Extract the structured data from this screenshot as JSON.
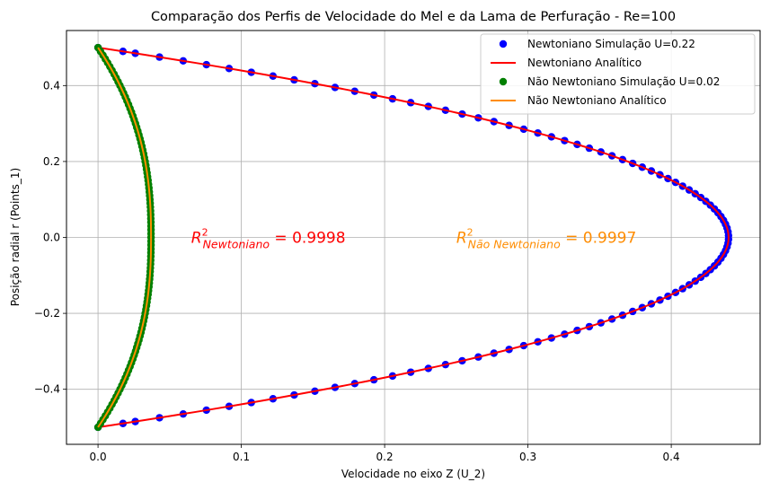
{
  "chart_data": {
    "type": "scatter",
    "title": "Comparação dos Perfis de Velocidade do Mel e da Lama de Perfuração - Re=100",
    "xlabel": "Velocidade no eixo Z (U_2)",
    "ylabel": "Posição radial r (Points_1)",
    "xlim": [
      -0.022,
      0.462
    ],
    "ylim": [
      -0.545,
      0.545
    ],
    "xticks": [
      0.0,
      0.1,
      0.2,
      0.3,
      0.4
    ],
    "xtick_labels": [
      "0.0",
      "0.1",
      "0.2",
      "0.3",
      "0.4"
    ],
    "yticks": [
      -0.4,
      -0.2,
      0.0,
      0.2,
      0.4
    ],
    "ytick_labels": [
      "−0.4",
      "−0.2",
      "0.0",
      "0.2",
      "0.4"
    ],
    "grid": true,
    "legend_position": "upper right",
    "series": [
      {
        "name": "Newtoniano Simulação U=0.22",
        "kind": "scatter",
        "color": "#0000ff",
        "profile": "newtonian",
        "umax": 0.44,
        "y": [
          0.5,
          0.49,
          0.485,
          0.475,
          0.465,
          0.455,
          0.445,
          0.435,
          0.425,
          0.415,
          0.405,
          0.395,
          0.385,
          0.375,
          0.365,
          0.355,
          0.345,
          0.335,
          0.325,
          0.315,
          0.305,
          0.295,
          0.285,
          0.275,
          0.265,
          0.255,
          0.245,
          0.235,
          0.225,
          0.215,
          0.205,
          0.195,
          0.185,
          0.175,
          0.165,
          0.155,
          0.145,
          0.135,
          0.125,
          0.115,
          0.105,
          0.095,
          0.085,
          0.075,
          0.065,
          0.055,
          0.045,
          0.035,
          0.025,
          0.015,
          0.005,
          -0.005,
          -0.015,
          -0.025,
          -0.035,
          -0.045,
          -0.055,
          -0.065,
          -0.075,
          -0.085,
          -0.095,
          -0.105,
          -0.115,
          -0.125,
          -0.135,
          -0.145,
          -0.155,
          -0.165,
          -0.175,
          -0.185,
          -0.195,
          -0.205,
          -0.215,
          -0.225,
          -0.235,
          -0.245,
          -0.255,
          -0.265,
          -0.275,
          -0.285,
          -0.295,
          -0.305,
          -0.315,
          -0.325,
          -0.335,
          -0.345,
          -0.355,
          -0.365,
          -0.375,
          -0.385,
          -0.395,
          -0.405,
          -0.415,
          -0.425,
          -0.435,
          -0.445,
          -0.455,
          -0.465,
          -0.475,
          -0.485,
          -0.49,
          -0.5
        ]
      },
      {
        "name": "Newtoniano Analítico",
        "kind": "line",
        "color": "#ff0000",
        "profile": "newtonian",
        "umax": 0.44
      },
      {
        "name": "Não Newtoniano Simulação U=0.02",
        "kind": "scatter",
        "color": "#008000",
        "profile": "non-newtonian",
        "umax": 0.037,
        "y": [
          0.5,
          0.49,
          0.48,
          0.47,
          0.46,
          0.45,
          0.44,
          0.43,
          0.42,
          0.41,
          0.4,
          0.39,
          0.38,
          0.37,
          0.36,
          0.35,
          0.34,
          0.33,
          0.32,
          0.31,
          0.3,
          0.29,
          0.28,
          0.27,
          0.26,
          0.25,
          0.24,
          0.23,
          0.22,
          0.21,
          0.2,
          0.19,
          0.18,
          0.17,
          0.16,
          0.15,
          0.14,
          0.13,
          0.12,
          0.11,
          0.1,
          0.09,
          0.08,
          0.07,
          0.06,
          0.05,
          0.04,
          0.03,
          0.02,
          0.01,
          0.0,
          -0.01,
          -0.02,
          -0.03,
          -0.04,
          -0.05,
          -0.06,
          -0.07,
          -0.08,
          -0.09,
          -0.1,
          -0.11,
          -0.12,
          -0.13,
          -0.14,
          -0.15,
          -0.16,
          -0.17,
          -0.18,
          -0.19,
          -0.2,
          -0.21,
          -0.22,
          -0.23,
          -0.24,
          -0.25,
          -0.26,
          -0.27,
          -0.28,
          -0.29,
          -0.3,
          -0.31,
          -0.32,
          -0.33,
          -0.34,
          -0.35,
          -0.36,
          -0.37,
          -0.38,
          -0.39,
          -0.4,
          -0.41,
          -0.42,
          -0.43,
          -0.44,
          -0.45,
          -0.46,
          -0.47,
          -0.48,
          -0.49,
          -0.5
        ]
      },
      {
        "name": "Não Newtoniano Analítico",
        "kind": "line",
        "color": "#ff8c00",
        "profile": "non-newtonian",
        "umax": 0.037
      }
    ],
    "annotations": [
      {
        "sub": "Newtoniano",
        "rest": " = 0.9998",
        "color": "#ff0000",
        "x": 0.065,
        "y": 0.0
      },
      {
        "sub": "Não Newtoniano",
        "rest": " = 0.9997",
        "color": "#ff8c00",
        "x": 0.25,
        "y": 0.0
      }
    ]
  }
}
